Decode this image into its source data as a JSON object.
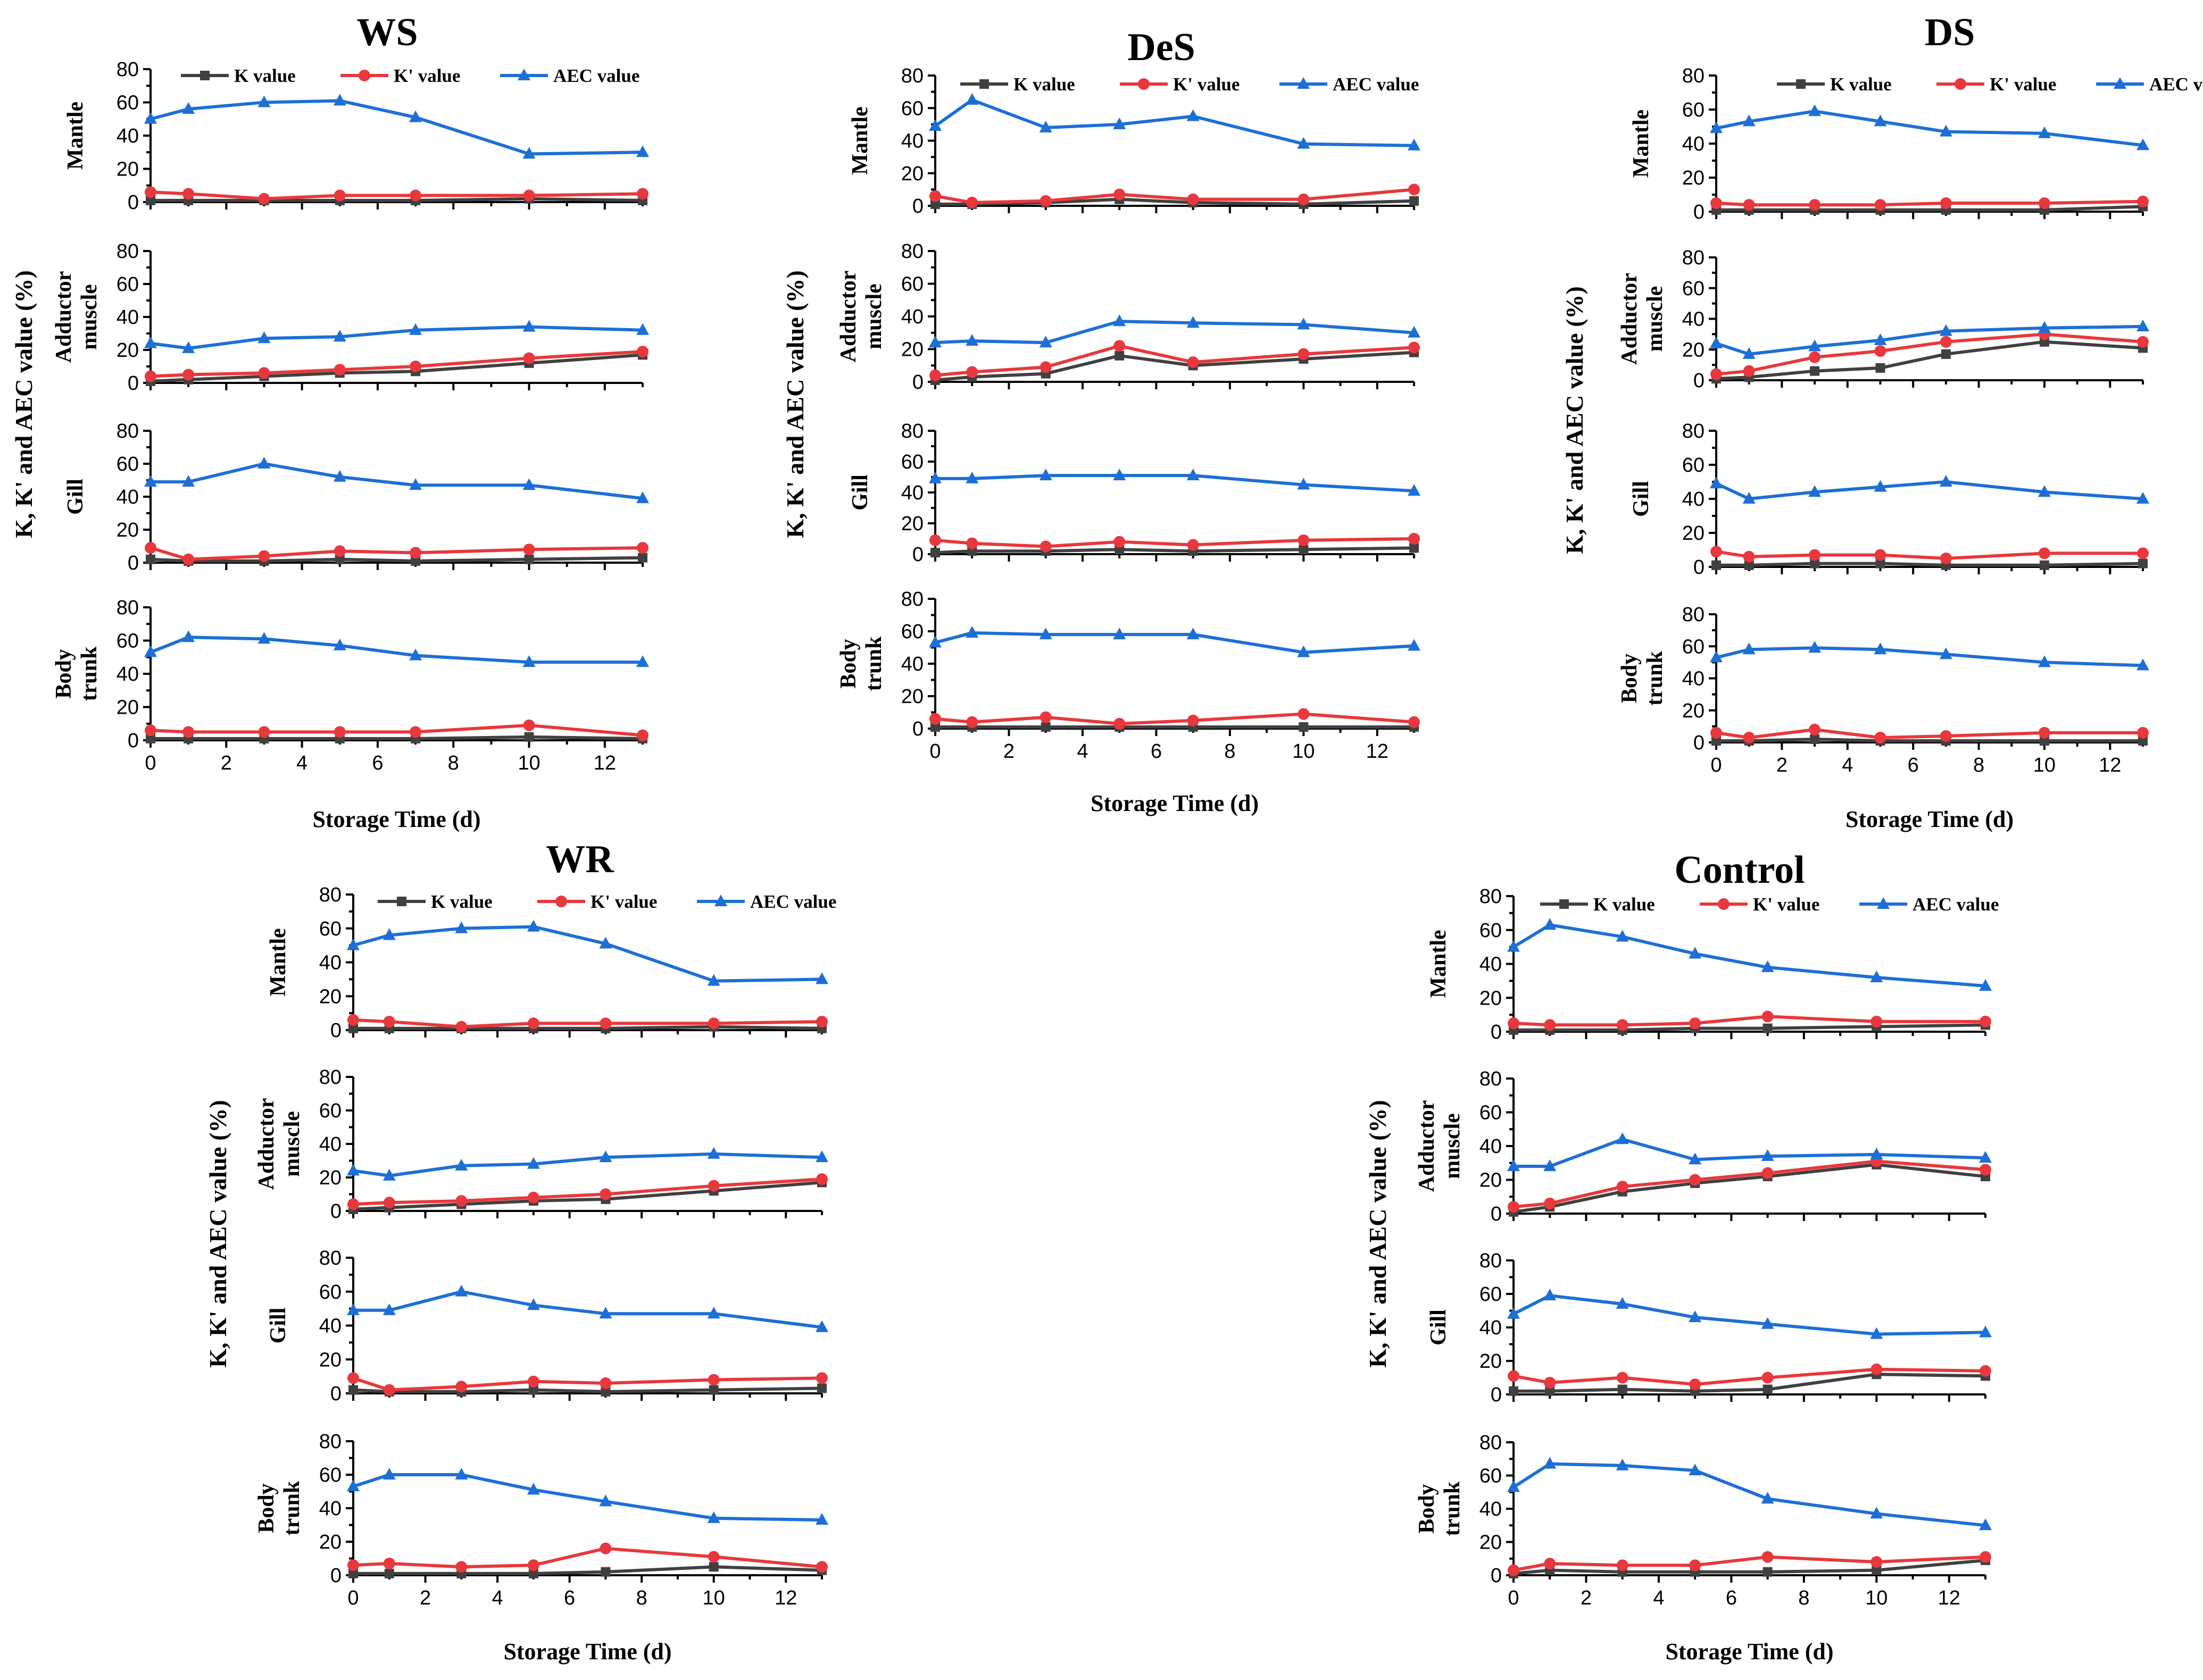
{
  "colors": {
    "k": "#404040",
    "kp": "#e8383d",
    "aec": "#1d6fd6",
    "axis": "#000000"
  },
  "chart_data": {
    "type": "line",
    "x": [
      0,
      1,
      3,
      5,
      7,
      10,
      13
    ],
    "xlim": [
      0,
      13
    ],
    "ylim": [
      0,
      80
    ],
    "x_ticks": [
      "0",
      "2",
      "4",
      "6",
      "8",
      "10",
      "12"
    ],
    "y_ticks": [
      "0",
      "20",
      "40",
      "60",
      "80"
    ],
    "xlabel": "Storage Time (d)",
    "ylabel": "K, K' and AEC value (%)",
    "legend": [
      "K value",
      "K' value",
      "AEC value"
    ],
    "groups": [
      {
        "title": "WS",
        "panels": [
          {
            "label": [
              "Mantle"
            ],
            "series": [
              {
                "name": "K value",
                "values": [
                  1,
                  1,
                  1,
                  1,
                  1,
                  2,
                  1
                ]
              },
              {
                "name": "K' value",
                "values": [
                  6,
                  5,
                  2,
                  4,
                  4,
                  4,
                  5
                ]
              },
              {
                "name": "AEC value",
                "values": [
                  50,
                  56,
                  60,
                  61,
                  51,
                  29,
                  30
                ]
              }
            ]
          },
          {
            "label": [
              "Adductor",
              "muscle"
            ],
            "series": [
              {
                "name": "K value",
                "values": [
                  1,
                  2,
                  4,
                  6,
                  7,
                  12,
                  17
                ]
              },
              {
                "name": "K' value",
                "values": [
                  4,
                  5,
                  6,
                  8,
                  10,
                  15,
                  19
                ]
              },
              {
                "name": "AEC value",
                "values": [
                  24,
                  21,
                  27,
                  28,
                  32,
                  34,
                  32
                ]
              }
            ]
          },
          {
            "label": [
              "Gill"
            ],
            "series": [
              {
                "name": "K value",
                "values": [
                  2,
                  1,
                  1,
                  2,
                  1,
                  2,
                  3
                ]
              },
              {
                "name": "K' value",
                "values": [
                  9,
                  2,
                  4,
                  7,
                  6,
                  8,
                  9
                ]
              },
              {
                "name": "AEC value",
                "values": [
                  49,
                  49,
                  60,
                  52,
                  47,
                  47,
                  39
                ]
              }
            ]
          },
          {
            "label": [
              "Body",
              "trunk"
            ],
            "series": [
              {
                "name": "K value",
                "values": [
                  1,
                  1,
                  1,
                  1,
                  1,
                  2,
                  1
                ]
              },
              {
                "name": "K' value",
                "values": [
                  6,
                  5,
                  5,
                  5,
                  5,
                  9,
                  3
                ]
              },
              {
                "name": "AEC value",
                "values": [
                  53,
                  62,
                  61,
                  57,
                  51,
                  47,
                  47
                ]
              }
            ]
          }
        ]
      },
      {
        "title": "DeS",
        "panels": [
          {
            "label": [
              "Mantle"
            ],
            "series": [
              {
                "name": "K value",
                "values": [
                  1,
                  1,
                  2,
                  4,
                  2,
                  1,
                  3
                ]
              },
              {
                "name": "K' value",
                "values": [
                  6,
                  2,
                  3,
                  7,
                  4,
                  4,
                  10
                ]
              },
              {
                "name": "AEC value",
                "values": [
                  49,
                  65,
                  48,
                  50,
                  55,
                  38,
                  37
                ]
              }
            ]
          },
          {
            "label": [
              "Adductor",
              "muscle"
            ],
            "series": [
              {
                "name": "K value",
                "values": [
                  1,
                  3,
                  5,
                  16,
                  10,
                  14,
                  18
                ]
              },
              {
                "name": "K' value",
                "values": [
                  4,
                  6,
                  9,
                  22,
                  12,
                  17,
                  21
                ]
              },
              {
                "name": "AEC value",
                "values": [
                  24,
                  25,
                  24,
                  37,
                  36,
                  35,
                  30
                ]
              }
            ]
          },
          {
            "label": [
              "Gill"
            ],
            "series": [
              {
                "name": "K value",
                "values": [
                  1,
                  2,
                  2,
                  3,
                  2,
                  3,
                  4
                ]
              },
              {
                "name": "K' value",
                "values": [
                  9,
                  7,
                  5,
                  8,
                  6,
                  9,
                  10
                ]
              },
              {
                "name": "AEC value",
                "values": [
                  49,
                  49,
                  51,
                  51,
                  51,
                  45,
                  41
                ]
              }
            ]
          },
          {
            "label": [
              "Body",
              "trunk"
            ],
            "series": [
              {
                "name": "K value",
                "values": [
                  1,
                  1,
                  1,
                  1,
                  1,
                  1,
                  1
                ]
              },
              {
                "name": "K' value",
                "values": [
                  6,
                  4,
                  7,
                  3,
                  5,
                  9,
                  4
                ]
              },
              {
                "name": "AEC value",
                "values": [
                  53,
                  59,
                  58,
                  58,
                  58,
                  47,
                  51
                ]
              }
            ]
          }
        ]
      },
      {
        "title": "DS",
        "panels": [
          {
            "label": [
              "Mantle"
            ],
            "series": [
              {
                "name": "K value",
                "values": [
                  1,
                  1,
                  1,
                  1,
                  1,
                  1,
                  3
                ]
              },
              {
                "name": "K' value",
                "values": [
                  5,
                  4,
                  4,
                  4,
                  5,
                  5,
                  6
                ]
              },
              {
                "name": "AEC value",
                "values": [
                  49,
                  53,
                  59,
                  53,
                  47,
                  46,
                  39
                ]
              }
            ]
          },
          {
            "label": [
              "Adductor",
              "muscle"
            ],
            "series": [
              {
                "name": "K value",
                "values": [
                  1,
                  2,
                  6,
                  8,
                  17,
                  25,
                  21
                ]
              },
              {
                "name": "K' value",
                "values": [
                  4,
                  6,
                  15,
                  19,
                  25,
                  30,
                  25
                ]
              },
              {
                "name": "AEC value",
                "values": [
                  24,
                  17,
                  22,
                  26,
                  32,
                  34,
                  35
                ]
              }
            ]
          },
          {
            "label": [
              "Gill"
            ],
            "series": [
              {
                "name": "K value",
                "values": [
                  1,
                  1,
                  2,
                  2,
                  1,
                  1,
                  2
                ]
              },
              {
                "name": "K' value",
                "values": [
                  9,
                  6,
                  7,
                  7,
                  5,
                  8,
                  8
                ]
              },
              {
                "name": "AEC value",
                "values": [
                  49,
                  40,
                  44,
                  47,
                  50,
                  44,
                  40
                ]
              }
            ]
          },
          {
            "label": [
              "Body",
              "trunk"
            ],
            "series": [
              {
                "name": "K value",
                "values": [
                  1,
                  1,
                  2,
                  1,
                  1,
                  1,
                  1
                ]
              },
              {
                "name": "K' value",
                "values": [
                  6,
                  3,
                  8,
                  3,
                  4,
                  6,
                  6
                ]
              },
              {
                "name": "AEC value",
                "values": [
                  53,
                  58,
                  59,
                  58,
                  55,
                  50,
                  48
                ]
              }
            ]
          }
        ]
      },
      {
        "title": "WR",
        "panels": [
          {
            "label": [
              "Mantle"
            ],
            "series": [
              {
                "name": "K value",
                "values": [
                  1,
                  1,
                  1,
                  1,
                  1,
                  2,
                  1
                ]
              },
              {
                "name": "K' value",
                "values": [
                  6,
                  5,
                  2,
                  4,
                  4,
                  4,
                  5
                ]
              },
              {
                "name": "AEC value",
                "values": [
                  50,
                  56,
                  60,
                  61,
                  51,
                  29,
                  30
                ]
              }
            ]
          },
          {
            "label": [
              "Adductor",
              "muscle"
            ],
            "series": [
              {
                "name": "K value",
                "values": [
                  1,
                  2,
                  4,
                  6,
                  7,
                  12,
                  17
                ]
              },
              {
                "name": "K' value",
                "values": [
                  4,
                  5,
                  6,
                  8,
                  10,
                  15,
                  19
                ]
              },
              {
                "name": "AEC value",
                "values": [
                  24,
                  21,
                  27,
                  28,
                  32,
                  34,
                  32
                ]
              }
            ]
          },
          {
            "label": [
              "Gill"
            ],
            "series": [
              {
                "name": "K value",
                "values": [
                  2,
                  1,
                  1,
                  2,
                  1,
                  2,
                  3
                ]
              },
              {
                "name": "K' value",
                "values": [
                  9,
                  2,
                  4,
                  7,
                  6,
                  8,
                  9
                ]
              },
              {
                "name": "AEC value",
                "values": [
                  49,
                  49,
                  60,
                  52,
                  47,
                  47,
                  39
                ]
              }
            ]
          },
          {
            "label": [
              "Body",
              "trunk"
            ],
            "series": [
              {
                "name": "K value",
                "values": [
                  1,
                  1,
                  1,
                  1,
                  2,
                  5,
                  3
                ]
              },
              {
                "name": "K' value",
                "values": [
                  6,
                  7,
                  5,
                  6,
                  16,
                  11,
                  5
                ]
              },
              {
                "name": "AEC value",
                "values": [
                  53,
                  60,
                  60,
                  51,
                  44,
                  34,
                  33
                ]
              }
            ]
          }
        ]
      },
      {
        "title": "Control",
        "panels": [
          {
            "label": [
              "Mantle"
            ],
            "series": [
              {
                "name": "K value",
                "values": [
                  1,
                  1,
                  1,
                  2,
                  2,
                  3,
                  4
                ]
              },
              {
                "name": "K' value",
                "values": [
                  5,
                  4,
                  4,
                  5,
                  9,
                  6,
                  6
                ]
              },
              {
                "name": "AEC value",
                "values": [
                  50,
                  63,
                  56,
                  46,
                  38,
                  32,
                  27
                ]
              }
            ]
          },
          {
            "label": [
              "Adductor",
              "muscle"
            ],
            "series": [
              {
                "name": "K value",
                "values": [
                  1,
                  4,
                  13,
                  18,
                  22,
                  29,
                  22
                ]
              },
              {
                "name": "K' value",
                "values": [
                  4,
                  6,
                  16,
                  20,
                  24,
                  31,
                  26
                ]
              },
              {
                "name": "AEC value",
                "values": [
                  28,
                  28,
                  44,
                  32,
                  34,
                  35,
                  33
                ]
              }
            ]
          },
          {
            "label": [
              "Gill"
            ],
            "series": [
              {
                "name": "K value",
                "values": [
                  2,
                  2,
                  3,
                  2,
                  3,
                  12,
                  11
                ]
              },
              {
                "name": "K' value",
                "values": [
                  11,
                  7,
                  10,
                  6,
                  10,
                  15,
                  14
                ]
              },
              {
                "name": "AEC value",
                "values": [
                  48,
                  59,
                  54,
                  46,
                  42,
                  36,
                  37
                ]
              }
            ]
          },
          {
            "label": [
              "Body",
              "trunk"
            ],
            "series": [
              {
                "name": "K value",
                "values": [
                  1,
                  3,
                  2,
                  2,
                  2,
                  3,
                  9
                ]
              },
              {
                "name": "K' value",
                "values": [
                  3,
                  7,
                  6,
                  6,
                  11,
                  8,
                  11
                ]
              },
              {
                "name": "AEC value",
                "values": [
                  53,
                  67,
                  66,
                  63,
                  46,
                  37,
                  30
                ]
              }
            ]
          }
        ]
      }
    ]
  }
}
